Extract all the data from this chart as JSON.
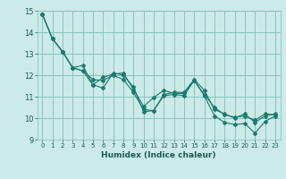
{
  "xlabel": "Humidex (Indice chaleur)",
  "ylabel": "",
  "background_color": "#cceae7",
  "grid_color": "#7dbfb8",
  "line_color": "#1a7a6e",
  "tick_color": "#1a5c55",
  "xlim": [
    -0.5,
    23.5
  ],
  "ylim": [
    9,
    15
  ],
  "xticks": [
    0,
    1,
    2,
    3,
    4,
    5,
    6,
    7,
    8,
    9,
    10,
    11,
    12,
    13,
    14,
    15,
    16,
    17,
    18,
    19,
    20,
    21,
    22,
    23
  ],
  "yticks": [
    9,
    10,
    11,
    12,
    13,
    14,
    15
  ],
  "series1_x": [
    0,
    1,
    2,
    3,
    4,
    5,
    6,
    7,
    8,
    9,
    10,
    11,
    12,
    13,
    14,
    15,
    16,
    17,
    18,
    19,
    20,
    21,
    22,
    23
  ],
  "series1_y": [
    14.85,
    13.7,
    13.1,
    12.35,
    12.45,
    11.55,
    11.4,
    12.1,
    12.0,
    11.45,
    10.3,
    10.35,
    11.05,
    11.1,
    11.05,
    11.75,
    11.05,
    10.1,
    9.8,
    9.7,
    9.75,
    9.3,
    9.85,
    10.1
  ],
  "series2_x": [
    0,
    1,
    2,
    3,
    4,
    5,
    6,
    7,
    8,
    9,
    10,
    11,
    12,
    13,
    14,
    15,
    16,
    17,
    18,
    19,
    20,
    21,
    22,
    23
  ],
  "series2_y": [
    14.85,
    13.7,
    13.1,
    12.35,
    12.2,
    11.55,
    11.9,
    12.05,
    12.1,
    11.35,
    10.55,
    10.95,
    11.3,
    11.15,
    11.15,
    11.75,
    11.1,
    10.5,
    10.15,
    10.05,
    10.1,
    9.9,
    10.2,
    10.15
  ],
  "series3_x": [
    0,
    1,
    2,
    3,
    4,
    5,
    6,
    7,
    8,
    9,
    10,
    11,
    12,
    13,
    14,
    15,
    16,
    17,
    18,
    19,
    20,
    21,
    22,
    23
  ],
  "series3_y": [
    14.85,
    13.7,
    13.1,
    12.35,
    12.2,
    11.8,
    11.75,
    12.0,
    11.8,
    11.2,
    10.4,
    10.35,
    11.1,
    11.2,
    11.2,
    11.8,
    11.3,
    10.4,
    10.2,
    10.0,
    10.2,
    9.8,
    10.1,
    10.2
  ]
}
